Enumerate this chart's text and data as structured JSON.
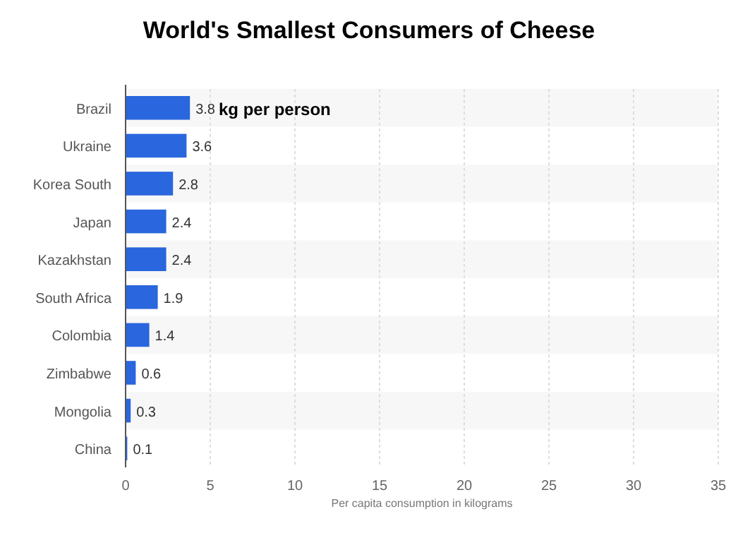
{
  "chart_data": {
    "type": "bar",
    "orientation": "horizontal",
    "title": "World's Smallest Consumers of Cheese",
    "xlabel": "Per capita consumption in kilograms",
    "categories": [
      "Brazil",
      "Ukraine",
      "Korea South",
      "Japan",
      "Kazakhstan",
      "South Africa",
      "Colombia",
      "Zimbabwe",
      "Mongolia",
      "China"
    ],
    "values": [
      3.8,
      3.6,
      2.8,
      2.4,
      2.4,
      1.9,
      1.4,
      0.6,
      0.3,
      0.1
    ],
    "color": "#2a66dd",
    "xlim": [
      0,
      35
    ],
    "xticks": [
      0,
      5,
      10,
      15,
      20,
      25,
      30,
      35
    ],
    "grid": "x",
    "data_labels": true,
    "annotations": [
      "kg per person"
    ]
  }
}
